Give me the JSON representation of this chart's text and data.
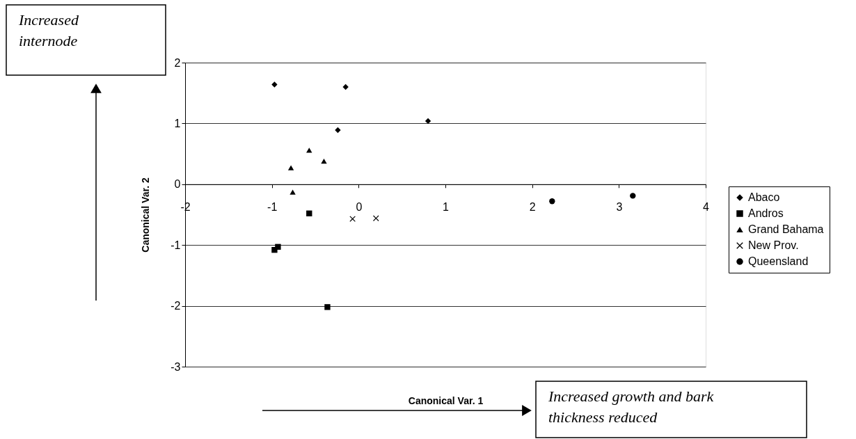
{
  "chart_data": {
    "type": "scatter",
    "xlabel": "Canonical Var. 1",
    "ylabel": "Canonical Var. 2",
    "xlim": [
      -2,
      4
    ],
    "xticks": [
      -2,
      -1,
      0,
      1,
      2,
      3,
      4
    ],
    "ylim": [
      -3,
      2
    ],
    "yticks": [
      -3,
      -2,
      -1,
      0,
      1,
      2
    ],
    "grid": "y",
    "legend": "right",
    "series": [
      {
        "name": "Abaco",
        "color": "#000000",
        "marker": "diamond",
        "x": [
          -0.97,
          -0.15,
          -0.24,
          0.8
        ],
        "values": [
          1.64,
          1.6,
          0.89,
          1.04
        ]
      },
      {
        "name": "Andros",
        "color": "#000000",
        "marker": "square",
        "x": [
          -0.57,
          -0.97,
          -0.93,
          -0.36
        ],
        "values": [
          -0.48,
          -1.08,
          -1.03,
          -2.02
        ]
      },
      {
        "name": "Grand Bahama",
        "color": "#000000",
        "marker": "triangle",
        "x": [
          -0.78,
          -0.57,
          -0.4,
          -0.76
        ],
        "values": [
          0.27,
          0.56,
          0.38,
          -0.13
        ]
      },
      {
        "name": "New Prov.",
        "color": "#000000",
        "marker": "cross",
        "x": [
          -0.07,
          0.2
        ],
        "values": [
          -0.57,
          -0.56
        ]
      },
      {
        "name": "Queensland",
        "color": "#000000",
        "marker": "circle",
        "x": [
          2.23,
          3.16
        ],
        "values": [
          -0.28,
          -0.19
        ]
      }
    ],
    "annotations": [
      "Increased internode",
      "Increased growth and bark thickness reduced"
    ]
  }
}
